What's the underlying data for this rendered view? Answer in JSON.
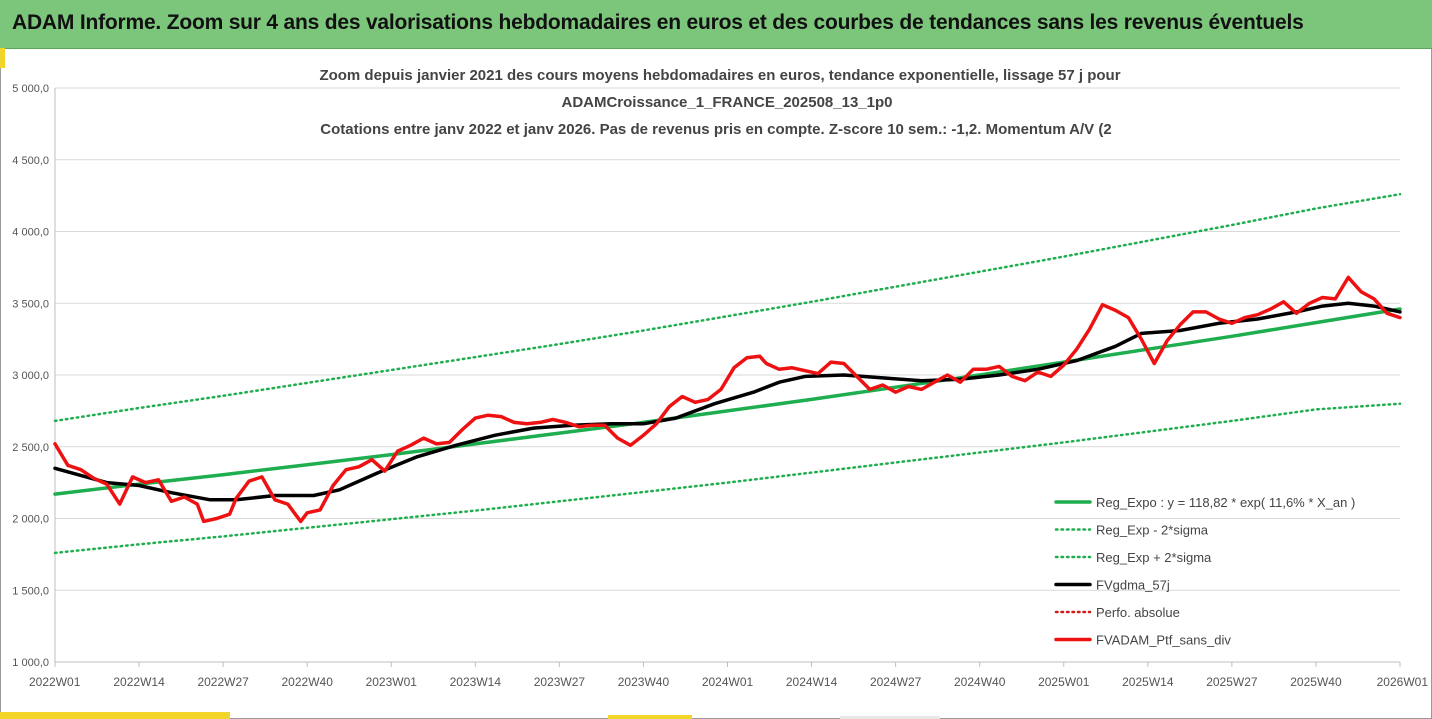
{
  "banner": {
    "title": "ADAM Informe. Zoom sur 4 ans des valorisations hebdomadaires en euros et des courbes de tendances sans les revenus éventuels"
  },
  "colors": {
    "banner": "#7cc67c",
    "trend": "#1fae4f",
    "band": "#1fae4f",
    "avg": "#000000",
    "price": "#ee1111",
    "perfo": "#d11a1a"
  },
  "chart_data": {
    "type": "line",
    "title_lines": [
      "Zoom depuis janvier 2021 des cours moyens hebdomadaires  en euros, tendance exponentielle, lissage 57 j pour",
      "ADAMCroissance_1_FRANCE_202508_13_1p0",
      "Cotations  entre janv 2022 et janv 2026. Pas de revenus pris en compte. Z-score 10 sem.: -1,2. Momentum  A/V (2"
    ],
    "ylim": [
      1000,
      5000
    ],
    "yticks": [
      1000,
      1500,
      2000,
      2500,
      3000,
      3500,
      4000,
      4500,
      5000
    ],
    "ytick_labels": [
      "1 000,0",
      "1 500,0",
      "2 000,0",
      "2 500,0",
      "3 000,0",
      "3 500,0",
      "4 000,0",
      "4 500,0",
      "5 000,0"
    ],
    "xlim": [
      0,
      208
    ],
    "xticks": [
      0,
      13,
      26,
      39,
      52,
      65,
      78,
      91,
      104,
      117,
      130,
      143,
      156,
      169,
      182,
      195,
      208
    ],
    "xtick_labels": [
      "2022W01",
      "2022W14",
      "2022W27",
      "2022W40",
      "2023W01",
      "2023W14",
      "2023W27",
      "2023W40",
      "2024W01",
      "2024W14",
      "2024W27",
      "2024W40",
      "2025W01",
      "2025W14",
      "2025W27",
      "2025W40",
      "2026W01"
    ],
    "series": [
      {
        "name": "Reg_Expo : y = 118,82 * exp( 11,6% *  X_an )",
        "style": "solid-green",
        "x": [
          0,
          13,
          26,
          39,
          52,
          65,
          78,
          91,
          104,
          117,
          130,
          143,
          156,
          169,
          182,
          195,
          208
        ],
        "values": [
          2170,
          2240,
          2305,
          2375,
          2445,
          2520,
          2595,
          2670,
          2750,
          2830,
          2915,
          3000,
          3090,
          3180,
          3270,
          3365,
          3460
        ]
      },
      {
        "name": "Reg_Exp - 2*sigma",
        "style": "dotted-green",
        "x": [
          0,
          13,
          26,
          39,
          52,
          65,
          78,
          91,
          104,
          117,
          130,
          143,
          156,
          169,
          182,
          195,
          208
        ],
        "values": [
          1760,
          1820,
          1875,
          1935,
          1995,
          2055,
          2120,
          2185,
          2250,
          2320,
          2390,
          2460,
          2530,
          2605,
          2680,
          2760,
          2800
        ]
      },
      {
        "name": "Reg_Exp + 2*sigma",
        "style": "dotted-green",
        "x": [
          0,
          13,
          26,
          39,
          52,
          65,
          78,
          91,
          104,
          117,
          130,
          143,
          156,
          169,
          182,
          195,
          208
        ],
        "values": [
          2680,
          2770,
          2855,
          2945,
          3035,
          3125,
          3215,
          3310,
          3410,
          3510,
          3615,
          3720,
          3825,
          3935,
          4045,
          4160,
          4260
        ]
      },
      {
        "name": "FVgdma_57j",
        "style": "solid-black",
        "x": [
          0,
          8,
          13,
          18,
          24,
          28,
          34,
          40,
          44,
          50,
          56,
          62,
          68,
          74,
          80,
          86,
          91,
          96,
          102,
          108,
          112,
          116,
          122,
          128,
          134,
          140,
          146,
          152,
          158,
          164,
          168,
          174,
          180,
          186,
          192,
          196,
          200,
          204,
          208
        ],
        "values": [
          2350,
          2250,
          2230,
          2180,
          2130,
          2130,
          2160,
          2160,
          2200,
          2320,
          2430,
          2510,
          2580,
          2630,
          2650,
          2660,
          2660,
          2700,
          2800,
          2880,
          2950,
          2990,
          3000,
          2980,
          2960,
          2970,
          3000,
          3040,
          3100,
          3200,
          3290,
          3310,
          3360,
          3390,
          3440,
          3480,
          3500,
          3480,
          3440
        ]
      },
      {
        "name": "Perfo. absolue",
        "style": "dotted-red",
        "x": [],
        "values": []
      },
      {
        "name": "FVADAM_Ptf_sans_div",
        "style": "solid-red",
        "x": [
          0,
          2,
          4,
          6,
          8,
          10,
          12,
          14,
          16,
          18,
          20,
          22,
          23,
          25,
          27,
          28,
          30,
          32,
          34,
          36,
          38,
          39,
          41,
          43,
          45,
          47,
          49,
          51,
          53,
          55,
          57,
          59,
          61,
          63,
          65,
          67,
          69,
          71,
          73,
          75,
          77,
          79,
          81,
          83,
          85,
          87,
          89,
          91,
          93,
          95,
          97,
          99,
          101,
          103,
          105,
          107,
          109,
          110,
          112,
          114,
          116,
          118,
          120,
          122,
          124,
          126,
          128,
          130,
          132,
          134,
          136,
          138,
          140,
          142,
          144,
          146,
          148,
          150,
          152,
          154,
          156,
          158,
          160,
          162,
          164,
          166,
          168,
          170,
          172,
          174,
          176,
          178,
          180,
          182,
          184,
          186,
          188,
          190,
          192,
          194,
          196,
          198,
          200,
          202,
          204,
          206,
          208
        ],
        "values": [
          2520,
          2370,
          2340,
          2280,
          2240,
          2100,
          2290,
          2250,
          2270,
          2120,
          2150,
          2100,
          1980,
          2000,
          2030,
          2140,
          2260,
          2290,
          2130,
          2100,
          1980,
          2040,
          2060,
          2230,
          2340,
          2360,
          2410,
          2330,
          2470,
          2510,
          2560,
          2520,
          2530,
          2620,
          2700,
          2720,
          2710,
          2670,
          2660,
          2670,
          2690,
          2670,
          2640,
          2650,
          2650,
          2560,
          2510,
          2580,
          2660,
          2780,
          2850,
          2810,
          2830,
          2900,
          3050,
          3120,
          3130,
          3080,
          3040,
          3050,
          3030,
          3010,
          3090,
          3080,
          2990,
          2900,
          2930,
          2880,
          2920,
          2900,
          2950,
          3000,
          2950,
          3040,
          3040,
          3060,
          2990,
          2960,
          3020,
          2990,
          3070,
          3180,
          3320,
          3490,
          3450,
          3400,
          3250,
          3080,
          3240,
          3350,
          3440,
          3440,
          3390,
          3360,
          3400,
          3420,
          3460,
          3510,
          3430,
          3500,
          3540,
          3530,
          3680,
          3580,
          3530,
          3430,
          3400
        ]
      }
    ],
    "legend": [
      {
        "label": "Reg_Expo : y = 118,82 * exp( 11,6% *  X_an )",
        "style": "solid-green"
      },
      {
        "label": "Reg_Exp - 2*sigma",
        "style": "dotted-green"
      },
      {
        "label": "Reg_Exp + 2*sigma",
        "style": "dotted-green"
      },
      {
        "label": "FVgdma_57j",
        "style": "solid-black"
      },
      {
        "label": "Perfo. absolue",
        "style": "dotted-red"
      },
      {
        "label": "FVADAM_Ptf_sans_div",
        "style": "solid-red"
      }
    ]
  }
}
